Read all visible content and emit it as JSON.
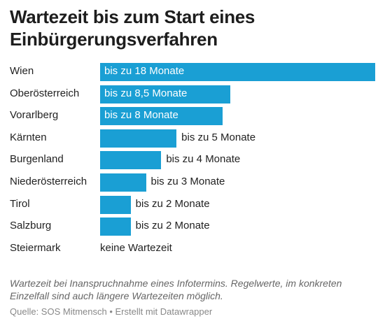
{
  "chart_data": {
    "type": "bar",
    "orientation": "horizontal",
    "title": "Wartezeit bis zum Start eines Einbürgerungsverfahren",
    "unit": "Monate",
    "categories": [
      "Wien",
      "Oberösterreich",
      "Vorarlberg",
      "Kärnten",
      "Burgenland",
      "Niederösterreich",
      "Tirol",
      "Salzburg",
      "Steiermark"
    ],
    "values": [
      18,
      8.5,
      8,
      5,
      4,
      3,
      2,
      2,
      0
    ],
    "value_labels": [
      "bis zu 18 Monate",
      "bis zu 8,5 Monate",
      "bis zu 8 Monate",
      "bis zu 5 Monate",
      "bis zu 4 Monate",
      "bis zu 3 Monate",
      "bis zu 2 Monate",
      "bis zu 2 Monate",
      "keine Wartezeit"
    ],
    "xlim": [
      0,
      18
    ],
    "bar_color": "#1a9fd4",
    "note": "Wartezeit bei Inanspruchnahme eines Infotermins. Regelwerte, im konkreten Einzelfall sind auch längere Wartezeiten möglich.",
    "source": "Quelle: SOS Mitmensch • Erstellt mit Datawrapper"
  }
}
